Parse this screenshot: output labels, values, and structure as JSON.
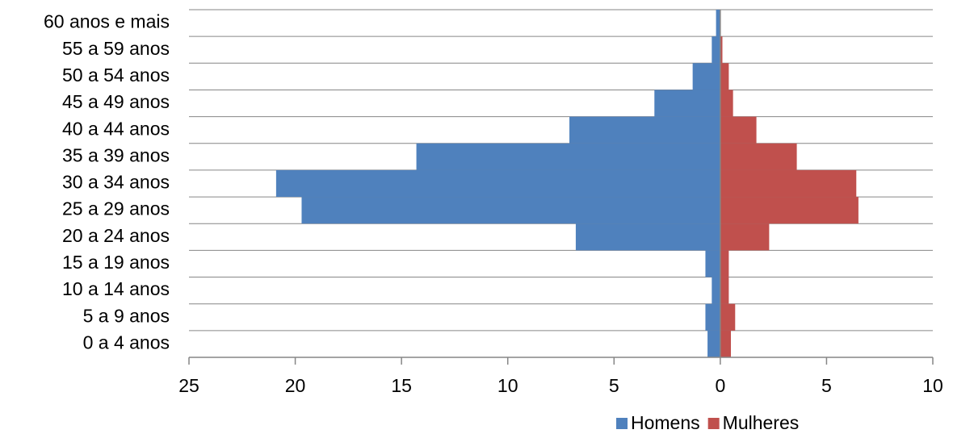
{
  "chart_data": {
    "type": "bar",
    "categories": [
      "60 anos e mais",
      "55 a 59 anos",
      "50 a 54 anos",
      "45 a 49 anos",
      "40 a 44 anos",
      "35 a 39 anos",
      "30 a 34 anos",
      "25 a 29 anos",
      "20 a 24 anos",
      "15 a 19 anos",
      "10 a 14 anos",
      "5 a 9 anos",
      "0 a 4 anos"
    ],
    "series": [
      {
        "name": "Homens",
        "color": "#4f81bd",
        "values": [
          -0.2,
          -0.4,
          -1.3,
          -3.1,
          -7.1,
          -14.3,
          -20.9,
          -19.7,
          -6.8,
          -0.7,
          -0.4,
          -0.7,
          -0.6
        ]
      },
      {
        "name": "Mulheres",
        "color": "#c0504d",
        "values": [
          0,
          0.1,
          0.4,
          0.6,
          1.7,
          3.6,
          6.4,
          6.5,
          2.3,
          0.4,
          0.4,
          0.7,
          0.5
        ]
      }
    ],
    "xlim": [
      -25,
      10
    ],
    "xticks": [
      {
        "value": -25,
        "label": "25"
      },
      {
        "value": -20,
        "label": "20"
      },
      {
        "value": -15,
        "label": "15"
      },
      {
        "value": -10,
        "label": "10"
      },
      {
        "value": -5,
        "label": "5"
      },
      0,
      5,
      10
    ],
    "legend": "bottom"
  }
}
